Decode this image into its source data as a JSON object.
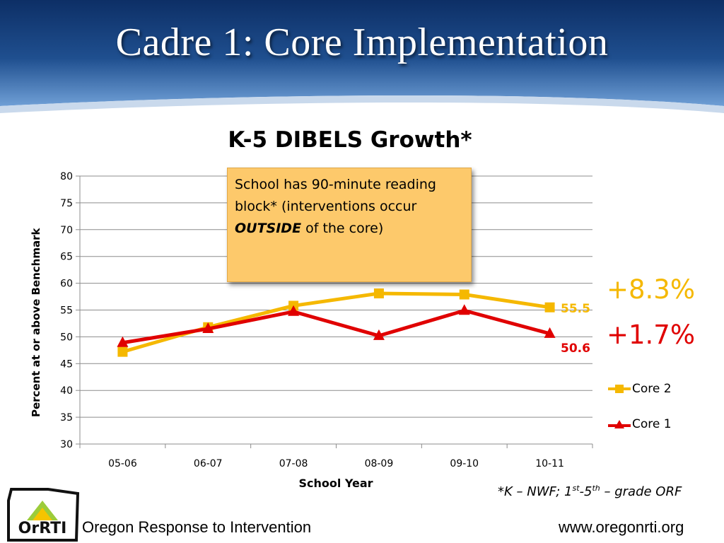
{
  "slide": {
    "title": "Cadre 1: Core Implementation",
    "callout": {
      "line1": "School has 90-minute reading block* (interventions occur ",
      "emph": "OUTSIDE",
      "line2": " of the core)"
    },
    "growth_core2": "+8.3%",
    "growth_core1": "+1.7%",
    "footnote": {
      "prefix": "*K – NWF; 1",
      "sup1": "st",
      "mid": "-5",
      "sup2": "th",
      "suffix": " – grade ORF"
    },
    "footer": {
      "org": "Oregon Response to Intervention",
      "logo_text": "OrRTI",
      "url": "www.oregonrti.org"
    }
  },
  "colors": {
    "core2": "#f5b800",
    "core1": "#e00000",
    "header_blue": "#1f4f8f",
    "callout_bg": "#fdc96b"
  },
  "chart_data": {
    "type": "line",
    "title": "K-5 DIBELS Growth*",
    "xlabel": "School Year",
    "ylabel": "Percent at or above Benchmark",
    "categories": [
      "05-06",
      "06-07",
      "07-08",
      "08-09",
      "09-10",
      "10-11"
    ],
    "ylim": [
      30,
      80
    ],
    "yticks": [
      30,
      35,
      40,
      45,
      50,
      55,
      60,
      65,
      70,
      75,
      80
    ],
    "grid": true,
    "legend": "right",
    "series": [
      {
        "name": "Core 2",
        "marker": "square",
        "values": [
          47.2,
          51.8,
          55.8,
          58.1,
          57.9,
          55.5
        ],
        "end_label": "55.5"
      },
      {
        "name": "Core 1",
        "marker": "triangle",
        "values": [
          48.9,
          51.5,
          54.7,
          50.2,
          54.9,
          50.6
        ],
        "end_label": "50.6"
      }
    ]
  }
}
